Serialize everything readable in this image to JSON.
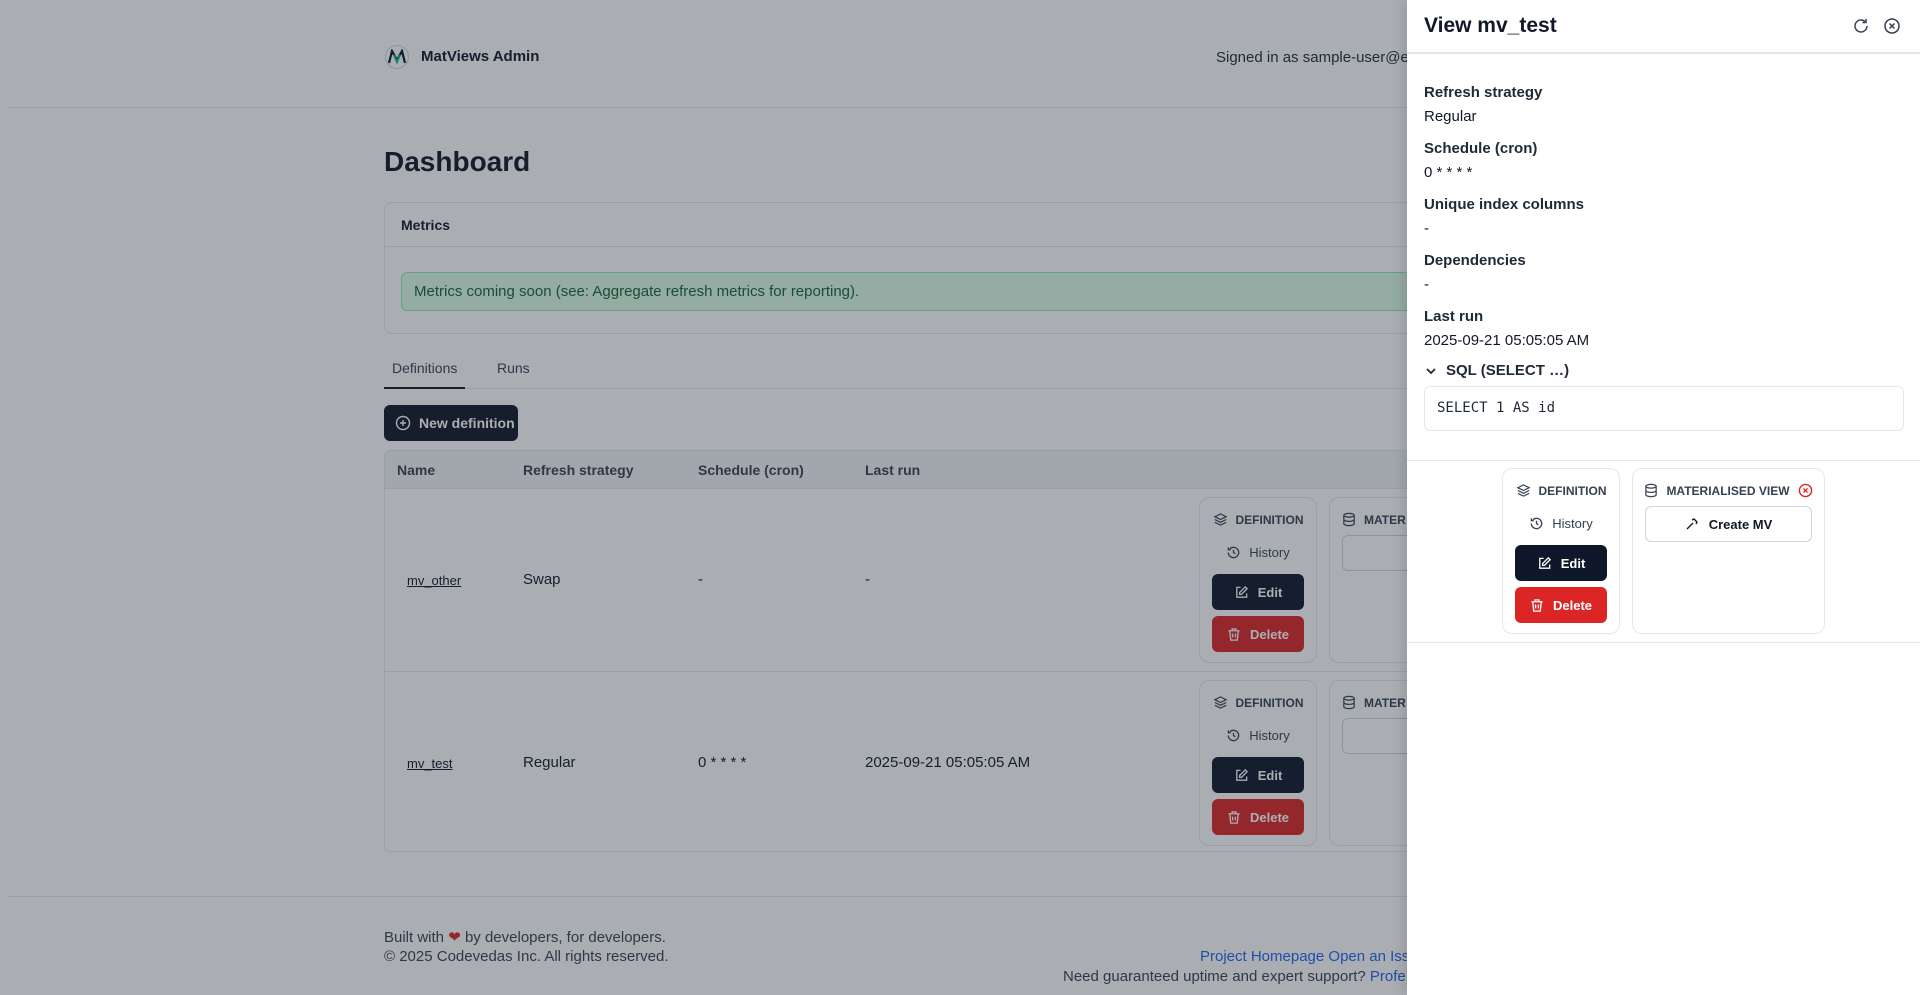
{
  "header": {
    "brand": "MatViews Admin",
    "signed_in": "Signed in as sample-user@e"
  },
  "page_title": "Dashboard",
  "metrics": {
    "title": "Metrics",
    "alert": "Metrics coming soon (see: Aggregate refresh metrics for reporting)."
  },
  "tabs": [
    {
      "label": "Definitions",
      "active": true
    },
    {
      "label": "Runs",
      "active": false
    }
  ],
  "new_definition_label": "New definition",
  "table": {
    "columns": [
      "Name",
      "Refresh strategy",
      "Schedule (cron)",
      "Last run"
    ],
    "rows": [
      {
        "name": "mv_other",
        "strategy": "Swap",
        "schedule": "-",
        "last_run": "-"
      },
      {
        "name": "mv_test",
        "strategy": "Regular",
        "schedule": "0 * * * *",
        "last_run": "2025-09-21 05:05:05 AM"
      }
    ],
    "definition_label": "DEFINITION",
    "history_label": "History",
    "edit_label": "Edit",
    "delete_label": "Delete",
    "mv_label_truncated": "MATER"
  },
  "footer": {
    "built_prefix": "Built with",
    "built_suffix": "by developers, for developers.",
    "copyright": "© 2025 Codevedas Inc. All rights reserved.",
    "link_homepage": "Project Homepage",
    "link_issue": "Open an Iss",
    "support": "Need guaranteed uptime and expert support?",
    "link_pro": "Profe"
  },
  "panel": {
    "title": "View mv_test",
    "fields": [
      {
        "label": "Refresh strategy",
        "value": "Regular"
      },
      {
        "label": "Schedule (cron)",
        "value": "0 * * * *"
      },
      {
        "label": "Unique index columns",
        "value": "-"
      },
      {
        "label": "Dependencies",
        "value": "-"
      },
      {
        "label": "Last run",
        "value": "2025-09-21 05:05:05 AM"
      }
    ],
    "sql_summary": "SQL (SELECT …)",
    "sql": "SELECT 1 AS id",
    "definition_label": "DEFINITION",
    "history_label": "History",
    "edit_label": "Edit",
    "delete_label": "Delete",
    "mv_label": "MATERIALISED VIEW",
    "mv_status": "not-created",
    "create_mv_label": "Create MV"
  },
  "colors": {
    "primary": "#0f172a",
    "danger": "#dc2626",
    "link": "#2563eb",
    "success_bg": "#dcfce7"
  }
}
